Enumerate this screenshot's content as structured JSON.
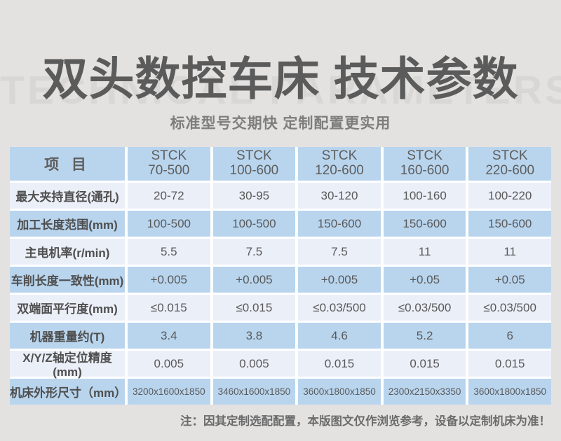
{
  "page": {
    "watermark": "TECHNICAL PARAMETERS",
    "title": "双头数控车床 技术参数",
    "subtitle": "标准型号交期快 定制配置更实用",
    "note": "注：因其定制选配配置，本版图文仅作浏览参考，设备以定制机床为准！"
  },
  "colors": {
    "page_bg": "#e3e2e1",
    "header_blue": "#b9d5ee",
    "row_light": "#ebeff8",
    "title_text": "#5b5b5b",
    "cell_text": "#595959"
  },
  "table": {
    "corner_label": "项 目",
    "columns": [
      {
        "line1": "STCK",
        "line2": "70-500"
      },
      {
        "line1": "STCK",
        "line2": "100-600"
      },
      {
        "line1": "STCK",
        "line2": "120-600"
      },
      {
        "line1": "STCK",
        "line2": "160-600"
      },
      {
        "line1": "STCK",
        "line2": "220-600"
      }
    ],
    "rows": [
      {
        "label": "最大夹持直径(通孔)",
        "values": [
          "20-72",
          "30-95",
          "30-120",
          "100-160",
          "100-220"
        ]
      },
      {
        "label": "加工长度范围(mm)",
        "values": [
          "100-500",
          "100-500",
          "150-600",
          "150-600",
          "150-600"
        ]
      },
      {
        "label": "主电机率(r/min)",
        "values": [
          "5.5",
          "7.5",
          "7.5",
          "11",
          "11"
        ]
      },
      {
        "label": "车削长度一致性(mm)",
        "values": [
          "+0.005",
          "+0.005",
          "+0.005",
          "+0.05",
          "+0.05"
        ]
      },
      {
        "label": "双端面平行度(mm)",
        "values": [
          "≤0.015",
          "≤0.015",
          "≤0.03/500",
          "≤0.03/500",
          "≤0.03/500"
        ]
      },
      {
        "label": "机器重量约(T)",
        "values": [
          "3.4",
          "3.8",
          "4.6",
          "5.2",
          "6"
        ]
      },
      {
        "label": "X/Y/Z轴定位精度(mm)",
        "values": [
          "0.005",
          "0.005",
          "0.015",
          "0.015",
          "0.015"
        ]
      },
      {
        "label": "机床外形尺寸（mm）",
        "values": [
          "3200x1600x1850",
          "3460x1600x1850",
          "3600x1800x1850",
          "2300x2150x3350",
          "3600x1800x1850"
        ]
      }
    ]
  }
}
